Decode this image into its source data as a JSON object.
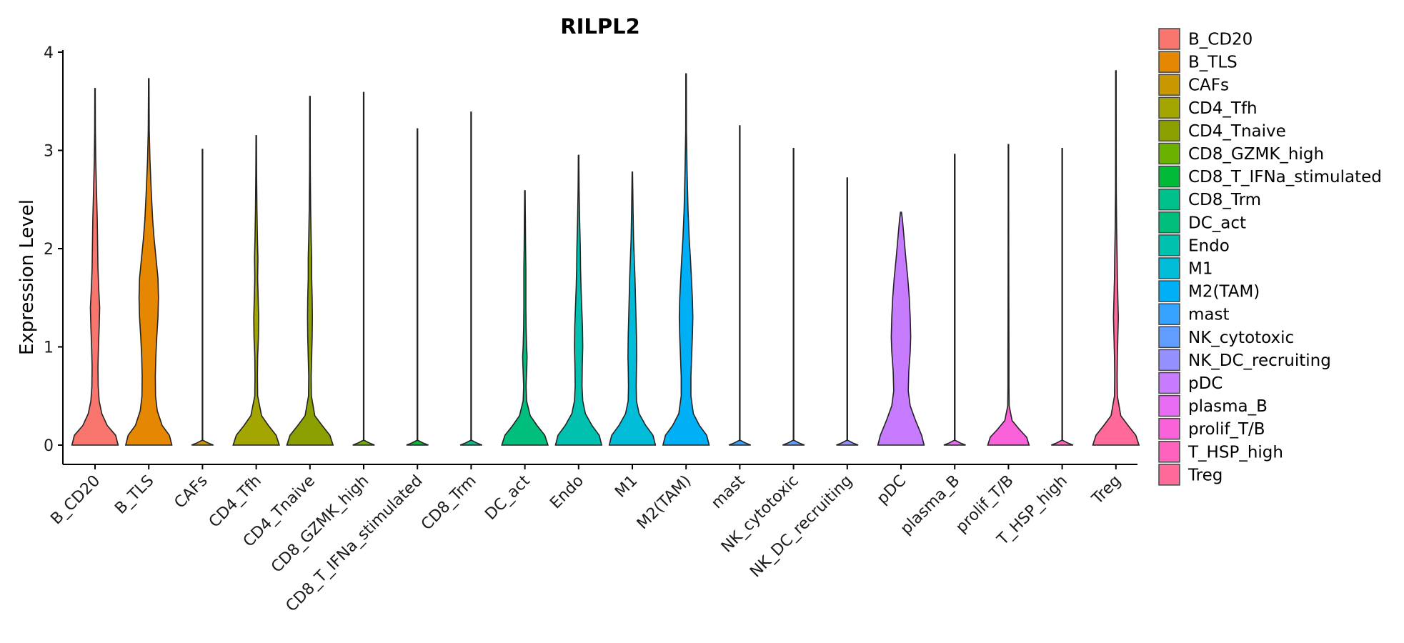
{
  "chart_data": {
    "type": "violin",
    "title": "RILPL2",
    "xlabel": "",
    "ylabel": "Expression Level",
    "ylim": [
      0,
      4
    ],
    "yticks": [
      0,
      1,
      2,
      3,
      4
    ],
    "legend_position": "right",
    "categories": [
      "B_CD20",
      "B_TLS",
      "CAFs",
      "CD4_Tfh",
      "CD4_Tnaive",
      "CD8_GZMK_high",
      "CD8_T_IFNa_stimulated",
      "CD8_Trm",
      "DC_act",
      "Endo",
      "M1",
      "M2(TAM)",
      "mast",
      "NK_cytotoxic",
      "NK_DC_recruiting",
      "pDC",
      "plasma_B",
      "prolif_T/B",
      "T_HSP_high",
      "Treg"
    ],
    "colors": [
      "#F8766D",
      "#E58700",
      "#C99800",
      "#A3A500",
      "#8B9F00",
      "#6BB100",
      "#00BA38",
      "#00C08B",
      "#00BF7D",
      "#00C0AF",
      "#00BCD8",
      "#00B0F6",
      "#35A2FF",
      "#619CFF",
      "#9590FF",
      "#C77CFF",
      "#E76BF3",
      "#FA62DB",
      "#FF62BC",
      "#FF6A98"
    ],
    "series": [
      {
        "name": "B_CD20",
        "max": 3.63,
        "density": [
          [
            0,
            0.95
          ],
          [
            0.1,
            0.85
          ],
          [
            0.2,
            0.5
          ],
          [
            0.32,
            0.28
          ],
          [
            0.45,
            0.17
          ],
          [
            0.6,
            0.13
          ],
          [
            0.8,
            0.12
          ],
          [
            1.0,
            0.14
          ],
          [
            1.2,
            0.17
          ],
          [
            1.4,
            0.19
          ],
          [
            1.6,
            0.15
          ],
          [
            1.8,
            0.12
          ],
          [
            2.0,
            0.11
          ],
          [
            2.3,
            0.09
          ],
          [
            2.6,
            0.06
          ],
          [
            2.9,
            0.03
          ],
          [
            3.2,
            0.015
          ],
          [
            3.63,
            0.008
          ]
        ]
      },
      {
        "name": "B_TLS",
        "max": 3.73,
        "density": [
          [
            0,
            0.95
          ],
          [
            0.1,
            0.85
          ],
          [
            0.2,
            0.55
          ],
          [
            0.35,
            0.35
          ],
          [
            0.5,
            0.28
          ],
          [
            0.7,
            0.27
          ],
          [
            0.9,
            0.29
          ],
          [
            1.1,
            0.33
          ],
          [
            1.3,
            0.38
          ],
          [
            1.5,
            0.4
          ],
          [
            1.7,
            0.38
          ],
          [
            1.9,
            0.3
          ],
          [
            2.1,
            0.22
          ],
          [
            2.3,
            0.16
          ],
          [
            2.6,
            0.1
          ],
          [
            2.9,
            0.05
          ],
          [
            3.2,
            0.02
          ],
          [
            3.73,
            0.008
          ]
        ]
      },
      {
        "name": "CAFs",
        "max": 3.01,
        "density": [
          [
            0,
            0.45
          ],
          [
            0.02,
            0.25
          ],
          [
            0.05,
            0.01
          ],
          [
            3.01,
            0.008
          ]
        ]
      },
      {
        "name": "CD4_Tfh",
        "max": 3.15,
        "density": [
          [
            0,
            0.95
          ],
          [
            0.1,
            0.82
          ],
          [
            0.2,
            0.5
          ],
          [
            0.3,
            0.22
          ],
          [
            0.5,
            0.06
          ],
          [
            0.7,
            0.05
          ],
          [
            0.9,
            0.06
          ],
          [
            1.1,
            0.09
          ],
          [
            1.3,
            0.1
          ],
          [
            1.5,
            0.08
          ],
          [
            1.7,
            0.06
          ],
          [
            1.9,
            0.07
          ],
          [
            2.1,
            0.05
          ],
          [
            2.4,
            0.03
          ],
          [
            2.8,
            0.015
          ],
          [
            3.15,
            0.008
          ]
        ]
      },
      {
        "name": "CD4_Tnaive",
        "max": 3.55,
        "density": [
          [
            0,
            0.95
          ],
          [
            0.1,
            0.82
          ],
          [
            0.2,
            0.5
          ],
          [
            0.3,
            0.2
          ],
          [
            0.5,
            0.06
          ],
          [
            0.7,
            0.05
          ],
          [
            0.9,
            0.07
          ],
          [
            1.1,
            0.09
          ],
          [
            1.3,
            0.1
          ],
          [
            1.5,
            0.09
          ],
          [
            1.7,
            0.07
          ],
          [
            1.9,
            0.07
          ],
          [
            2.1,
            0.05
          ],
          [
            2.4,
            0.03
          ],
          [
            2.8,
            0.015
          ],
          [
            3.55,
            0.008
          ]
        ]
      },
      {
        "name": "CD8_GZMK_high",
        "max": 3.59,
        "density": [
          [
            0,
            0.45
          ],
          [
            0.02,
            0.25
          ],
          [
            0.05,
            0.01
          ],
          [
            3.59,
            0.008
          ]
        ]
      },
      {
        "name": "CD8_T_IFNa_stimulated",
        "max": 3.22,
        "density": [
          [
            0,
            0.45
          ],
          [
            0.02,
            0.25
          ],
          [
            0.05,
            0.01
          ],
          [
            3.22,
            0.008
          ]
        ]
      },
      {
        "name": "CD8_Trm",
        "max": 3.39,
        "density": [
          [
            0,
            0.45
          ],
          [
            0.02,
            0.25
          ],
          [
            0.05,
            0.01
          ],
          [
            3.39,
            0.008
          ]
        ]
      },
      {
        "name": "DC_act",
        "max": 2.59,
        "density": [
          [
            0,
            0.95
          ],
          [
            0.1,
            0.82
          ],
          [
            0.2,
            0.5
          ],
          [
            0.3,
            0.22
          ],
          [
            0.45,
            0.07
          ],
          [
            0.6,
            0.05
          ],
          [
            0.8,
            0.08
          ],
          [
            0.9,
            0.09
          ],
          [
            1.0,
            0.07
          ],
          [
            1.2,
            0.05
          ],
          [
            1.4,
            0.04
          ],
          [
            1.6,
            0.04
          ],
          [
            1.8,
            0.04
          ],
          [
            2.0,
            0.03
          ],
          [
            2.3,
            0.02
          ],
          [
            2.59,
            0.008
          ]
        ]
      },
      {
        "name": "Endo",
        "max": 2.95,
        "density": [
          [
            0,
            0.95
          ],
          [
            0.1,
            0.85
          ],
          [
            0.2,
            0.55
          ],
          [
            0.32,
            0.28
          ],
          [
            0.45,
            0.17
          ],
          [
            0.6,
            0.14
          ],
          [
            0.8,
            0.15
          ],
          [
            1.0,
            0.17
          ],
          [
            1.2,
            0.16
          ],
          [
            1.4,
            0.13
          ],
          [
            1.6,
            0.1
          ],
          [
            1.8,
            0.08
          ],
          [
            2.0,
            0.07
          ],
          [
            2.3,
            0.04
          ],
          [
            2.6,
            0.02
          ],
          [
            2.95,
            0.008
          ]
        ]
      },
      {
        "name": "M1",
        "max": 2.78,
        "density": [
          [
            0,
            0.95
          ],
          [
            0.1,
            0.85
          ],
          [
            0.2,
            0.55
          ],
          [
            0.32,
            0.28
          ],
          [
            0.45,
            0.17
          ],
          [
            0.6,
            0.16
          ],
          [
            0.8,
            0.17
          ],
          [
            0.9,
            0.18
          ],
          [
            1.1,
            0.17
          ],
          [
            1.3,
            0.15
          ],
          [
            1.5,
            0.13
          ],
          [
            1.7,
            0.11
          ],
          [
            1.9,
            0.08
          ],
          [
            2.1,
            0.05
          ],
          [
            2.4,
            0.03
          ],
          [
            2.78,
            0.008
          ]
        ]
      },
      {
        "name": "M2(TAM)",
        "max": 3.78,
        "density": [
          [
            0,
            0.95
          ],
          [
            0.1,
            0.85
          ],
          [
            0.2,
            0.55
          ],
          [
            0.32,
            0.3
          ],
          [
            0.5,
            0.2
          ],
          [
            0.7,
            0.2
          ],
          [
            0.9,
            0.23
          ],
          [
            1.1,
            0.26
          ],
          [
            1.3,
            0.28
          ],
          [
            1.5,
            0.26
          ],
          [
            1.7,
            0.22
          ],
          [
            1.9,
            0.18
          ],
          [
            2.1,
            0.13
          ],
          [
            2.4,
            0.08
          ],
          [
            2.8,
            0.04
          ],
          [
            3.2,
            0.015
          ],
          [
            3.78,
            0.008
          ]
        ]
      },
      {
        "name": "mast",
        "max": 3.25,
        "density": [
          [
            0,
            0.45
          ],
          [
            0.02,
            0.25
          ],
          [
            0.05,
            0.01
          ],
          [
            3.25,
            0.008
          ]
        ]
      },
      {
        "name": "NK_cytotoxic",
        "max": 3.02,
        "density": [
          [
            0,
            0.45
          ],
          [
            0.02,
            0.25
          ],
          [
            0.05,
            0.01
          ],
          [
            3.02,
            0.008
          ]
        ]
      },
      {
        "name": "NK_DC_recruiting",
        "max": 2.72,
        "density": [
          [
            0,
            0.45
          ],
          [
            0.02,
            0.25
          ],
          [
            0.05,
            0.01
          ],
          [
            2.72,
            0.008
          ]
        ]
      },
      {
        "name": "pDC",
        "max": 2.37,
        "density": [
          [
            0,
            0.95
          ],
          [
            0.1,
            0.85
          ],
          [
            0.25,
            0.6
          ],
          [
            0.4,
            0.38
          ],
          [
            0.55,
            0.3
          ],
          [
            0.75,
            0.32
          ],
          [
            0.95,
            0.38
          ],
          [
            1.1,
            0.4
          ],
          [
            1.3,
            0.38
          ],
          [
            1.5,
            0.34
          ],
          [
            1.7,
            0.28
          ],
          [
            1.9,
            0.2
          ],
          [
            2.1,
            0.13
          ],
          [
            2.3,
            0.06
          ],
          [
            2.37,
            0.02
          ]
        ]
      },
      {
        "name": "plasma_B",
        "max": 2.96,
        "density": [
          [
            0,
            0.45
          ],
          [
            0.02,
            0.25
          ],
          [
            0.05,
            0.01
          ],
          [
            2.96,
            0.008
          ]
        ]
      },
      {
        "name": "prolif_T/B",
        "max": 3.06,
        "density": [
          [
            0,
            0.85
          ],
          [
            0.08,
            0.75
          ],
          [
            0.16,
            0.45
          ],
          [
            0.25,
            0.15
          ],
          [
            0.4,
            0.03
          ],
          [
            0.6,
            0.02
          ],
          [
            1.0,
            0.02
          ],
          [
            1.5,
            0.015
          ],
          [
            2.0,
            0.012
          ],
          [
            2.5,
            0.01
          ],
          [
            3.06,
            0.008
          ]
        ]
      },
      {
        "name": "T_HSP_high",
        "max": 3.02,
        "density": [
          [
            0,
            0.45
          ],
          [
            0.02,
            0.25
          ],
          [
            0.05,
            0.01
          ],
          [
            3.02,
            0.008
          ]
        ]
      },
      {
        "name": "Treg",
        "max": 3.81,
        "density": [
          [
            0,
            0.95
          ],
          [
            0.1,
            0.82
          ],
          [
            0.2,
            0.5
          ],
          [
            0.3,
            0.2
          ],
          [
            0.5,
            0.06
          ],
          [
            0.7,
            0.05
          ],
          [
            0.9,
            0.06
          ],
          [
            1.1,
            0.08
          ],
          [
            1.3,
            0.1
          ],
          [
            1.5,
            0.08
          ],
          [
            1.7,
            0.06
          ],
          [
            1.9,
            0.05
          ],
          [
            2.2,
            0.03
          ],
          [
            2.6,
            0.015
          ],
          [
            3.81,
            0.008
          ]
        ]
      }
    ]
  }
}
